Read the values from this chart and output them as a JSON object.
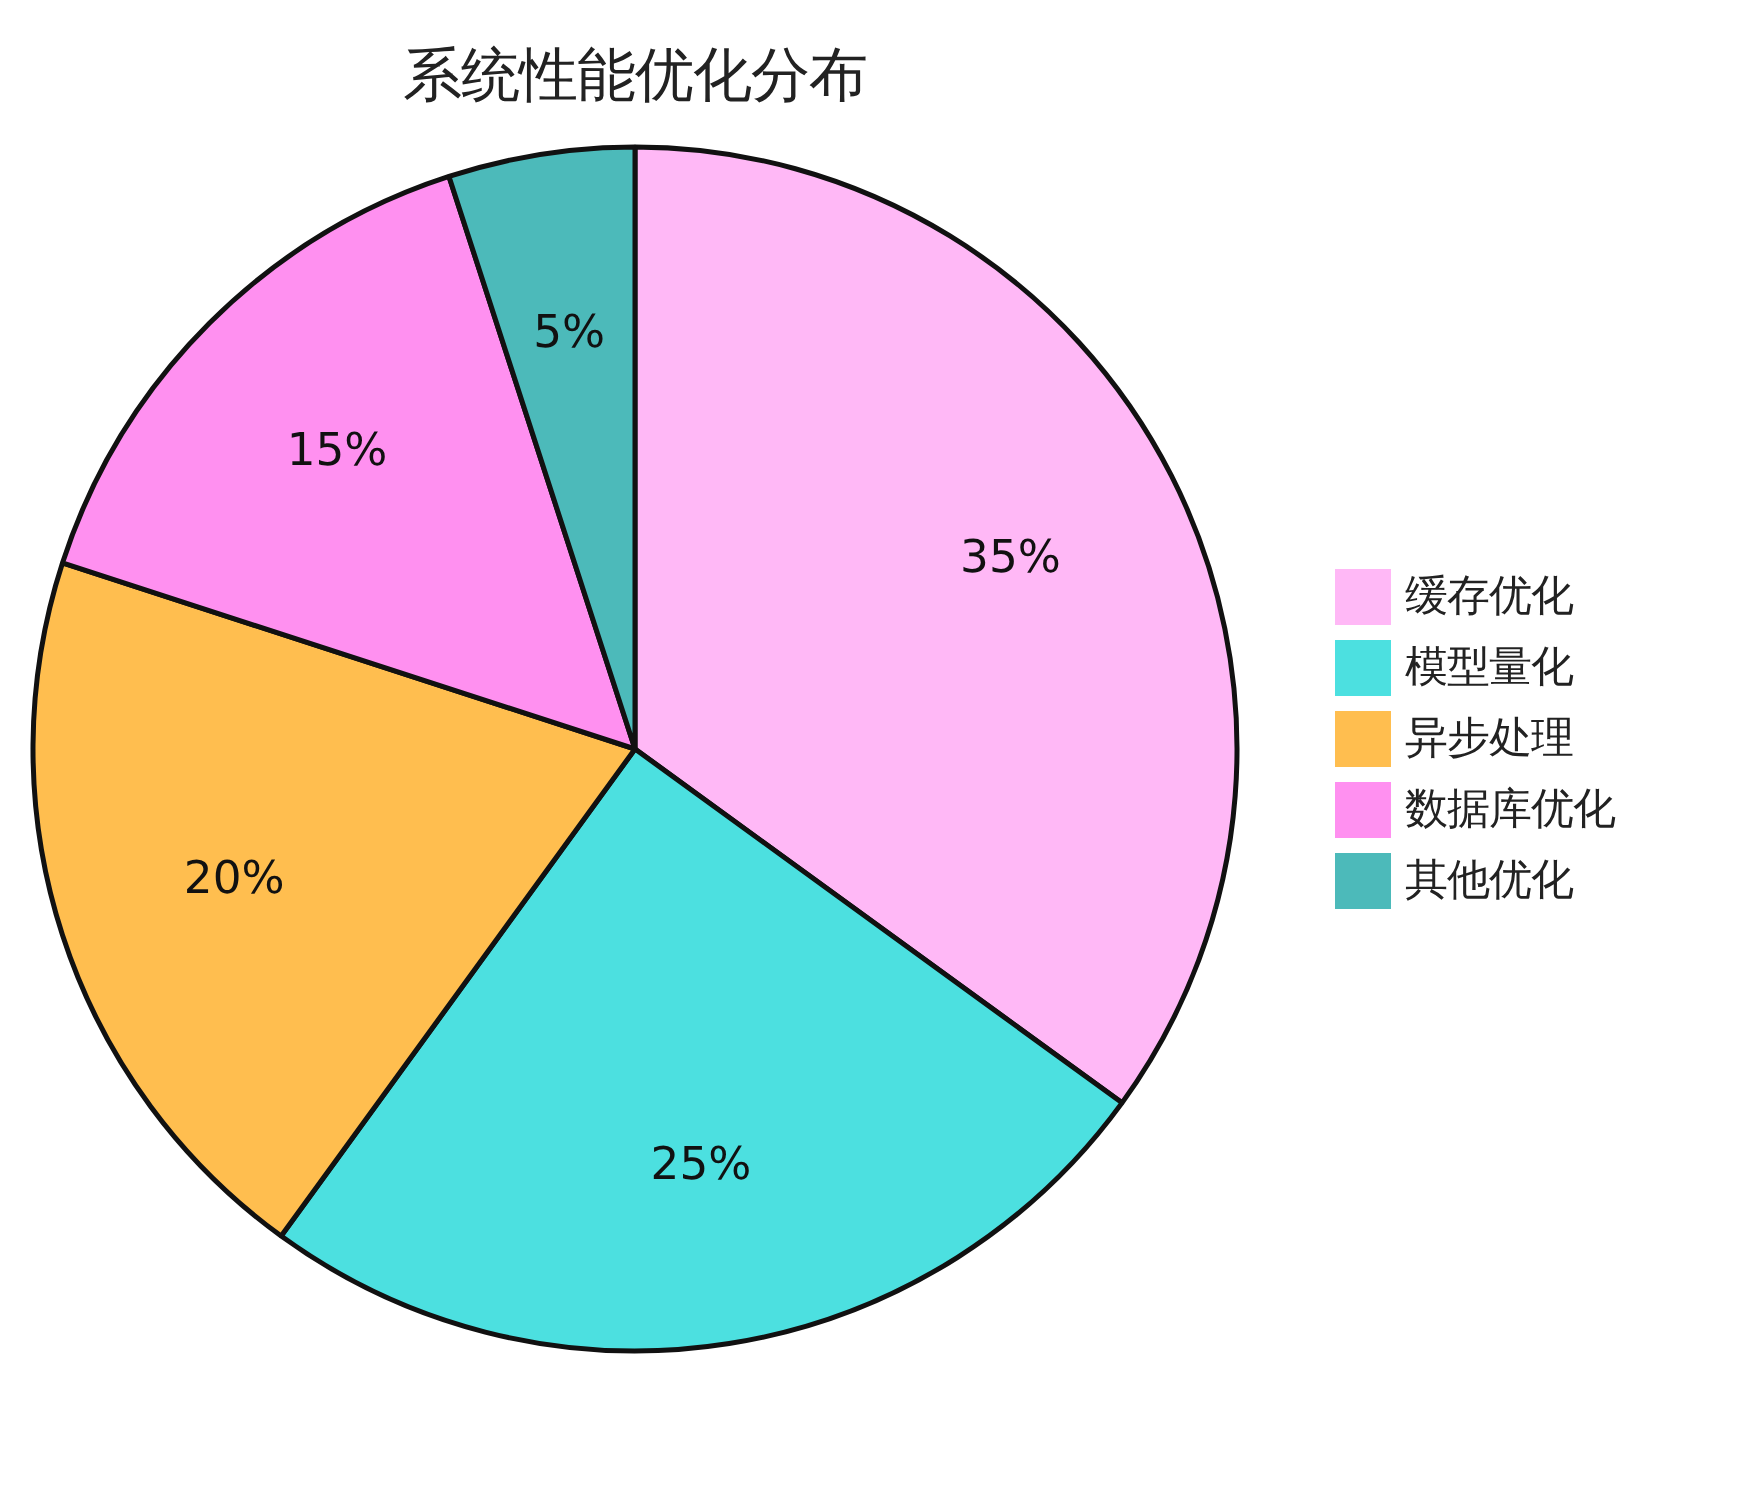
{
  "chart_data": {
    "type": "pie",
    "title": "系统性能优化分布",
    "categories": [
      "缓存优化",
      "模型量化",
      "异步处理",
      "数据库优化",
      "其他优化"
    ],
    "values": [
      35,
      25,
      20,
      15,
      5
    ],
    "colors": [
      "#ffb8f6",
      "#4ce0e0",
      "#ffbe4f",
      "#ff90f0",
      "#4cbaba"
    ],
    "value_labels": [
      "35%",
      "25%",
      "20%",
      "15%",
      "5%"
    ],
    "legend": "right"
  }
}
